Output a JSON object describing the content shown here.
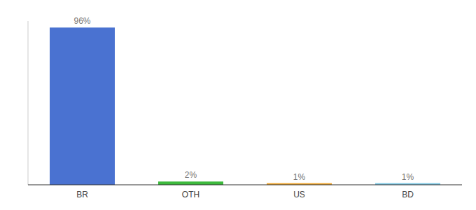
{
  "chart_data": {
    "type": "bar",
    "categories": [
      "BR",
      "OTH",
      "US",
      "BD"
    ],
    "values": [
      96,
      2,
      1,
      1
    ],
    "value_labels": [
      "96%",
      "2%",
      "1%",
      "1%"
    ],
    "colors": [
      "#4a72d1",
      "#3dba3d",
      "#f0a830",
      "#7ec8e3"
    ],
    "ylim": [
      0,
      100
    ],
    "yticks": [],
    "data_labels": true,
    "tick_labels": "x"
  }
}
